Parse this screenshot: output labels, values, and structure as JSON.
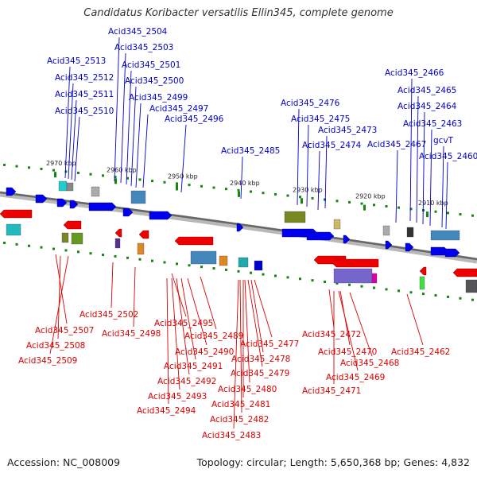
{
  "title": "Candidatus Koribacter versatilis Ellin345, complete genome",
  "footer": {
    "accession": "Accession: NC_008009",
    "summary": "Topology: circular; Length: 5,650,368 bp; Genes: 4,832"
  },
  "colors": {
    "forward_label": "#0000cc",
    "reverse_label": "#dd0000",
    "forward_arrow": "#0000ee",
    "reverse_arrow": "#ee0000",
    "backbone": "#888888",
    "tick": "#118811"
  },
  "scale_ticks": [
    "2970 kbp",
    "2960 kbp",
    "2950 kbp",
    "2940 kbp",
    "2930 kbp",
    "2920 kbp",
    "2910 kbp"
  ],
  "forward_labels": [
    "Acid345_2504",
    "Acid345_2503",
    "Acid345_2513",
    "Acid345_2501",
    "Acid345_2512",
    "Acid345_2500",
    "Acid345_2511",
    "Acid345_2499",
    "Acid345_2510",
    "Acid345_2497",
    "Acid345_2496",
    "Acid345_2485",
    "Acid345_2476",
    "Acid345_2475",
    "Acid345_2473",
    "Acid345_2474",
    "Acid345_2466",
    "Acid345_2465",
    "Acid345_2464",
    "Acid345_2463",
    "Acid345_2467",
    "gcvT",
    "Acid345_2460"
  ],
  "reverse_labels": [
    "Acid345_2502",
    "Acid345_2498",
    "Acid345_2495",
    "Acid345_2507",
    "Acid345_2489",
    "Acid345_2508",
    "Acid345_2490",
    "Acid345_2477",
    "Acid345_2478",
    "Acid345_2509",
    "Acid345_2491",
    "Acid345_2492",
    "Acid345_2479",
    "Acid345_2493",
    "Acid345_2480",
    "Acid345_2494",
    "Acid345_2481",
    "Acid345_2482",
    "Acid345_2483",
    "Acid345_2472",
    "Acid345_2470",
    "Acid345_2462",
    "Acid345_2468",
    "Acid345_2469",
    "Acid345_2471"
  ]
}
